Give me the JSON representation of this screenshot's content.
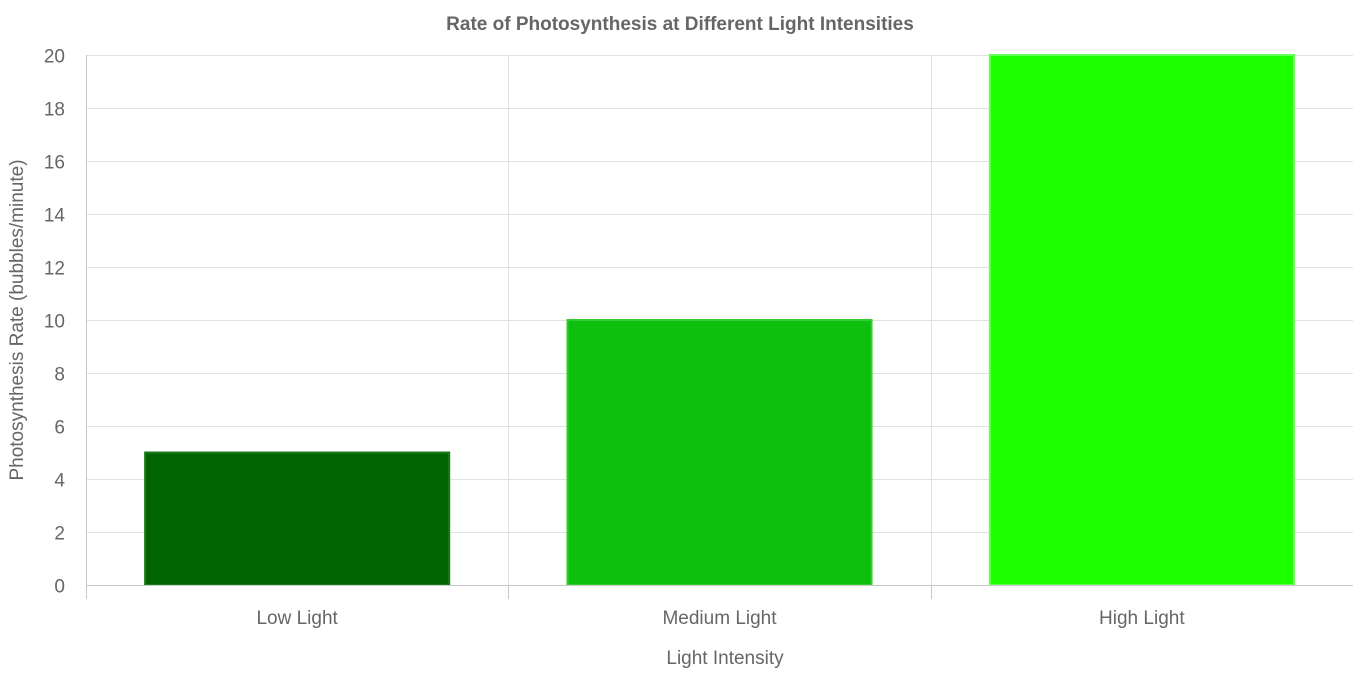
{
  "chart_data": {
    "type": "bar",
    "title": "Rate of Photosynthesis at Different Light Intensities",
    "xlabel": "Light Intensity",
    "ylabel": "Photosynthesis Rate (bubbles/minute)",
    "categories": [
      "Low Light",
      "Medium Light",
      "High Light"
    ],
    "values": [
      5,
      10,
      20
    ],
    "ylim": [
      0,
      20
    ],
    "yticks": [
      0,
      2,
      4,
      6,
      8,
      10,
      12,
      14,
      16,
      18,
      20
    ],
    "grid": true,
    "legend": "none",
    "colors": {
      "fills": [
        "#006400",
        "#0DC00D",
        "#1EFF00"
      ],
      "borders": [
        "#1a7a1a",
        "#33cc33",
        "#66ff55"
      ]
    }
  }
}
